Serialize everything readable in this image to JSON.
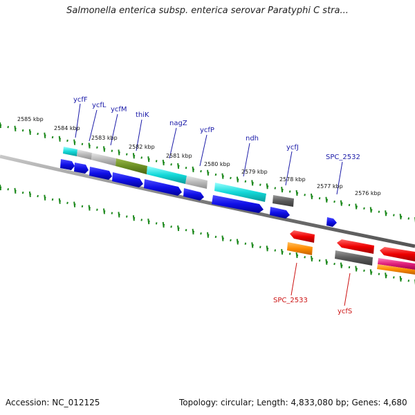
{
  "title": "Salmonella enterica subsp. enterica serovar Paratyphi C stra...",
  "footer": {
    "accession": "Accession: NC_012125",
    "summary": "Topology: circular; Length: 4,833,080 bp; Genes: 4,680"
  },
  "ticks": [
    "2585 kbp",
    "2584 kbp",
    "2583 kbp",
    "2582 kbp",
    "2581 kbp",
    "2580 kbp",
    "2579 kbp",
    "2578 kbp",
    "2577 kbp",
    "2576 kbp"
  ],
  "gene_labels_top": [
    "ycfF",
    "ycfL",
    "ycfM",
    "thiK",
    "nagZ",
    "ycfP",
    "ndh",
    "ycfJ",
    "SPC_2532"
  ],
  "gene_labels_bottom": [
    "SPC_2533",
    "ycfS"
  ],
  "colors": {
    "forward_strand": "#0a0adc",
    "reverse_strand": "#ee0000",
    "label_top": "#1a1aa8",
    "label_bottom": "#cc1111",
    "tick": "#1e8a1e",
    "backbone": "#8a8a8a"
  }
}
